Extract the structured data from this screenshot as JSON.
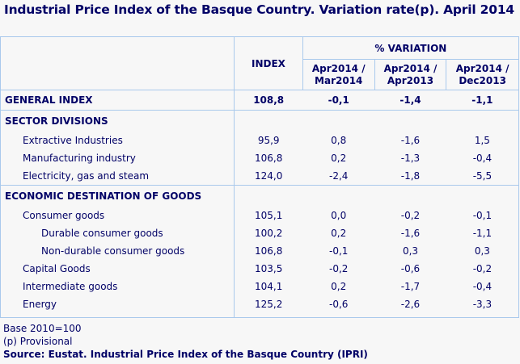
{
  "title": "Industrial Price Index of the Basque Country. Variation rate(p). April 2014",
  "header": {
    "index": "INDEX",
    "variation": "% VARIATION",
    "cols": [
      "Apr2014 / Mar2014",
      "Apr2014 / Apr2013",
      "Apr2014 /Dec2013"
    ]
  },
  "general": {
    "label": "GENERAL INDEX",
    "values": [
      "108,8",
      "-0,1",
      "-1,4",
      "-1,1"
    ]
  },
  "sections": [
    {
      "label": "SECTOR DIVISIONS",
      "rows": [
        {
          "label": "Extractive Industries",
          "level": 1,
          "values": [
            "95,9",
            "0,8",
            "-1,6",
            "1,5"
          ]
        },
        {
          "label": "Manufacturing industry",
          "level": 1,
          "values": [
            "106,8",
            "0,2",
            "-1,3",
            "-0,4"
          ]
        },
        {
          "label": "Electricity, gas and steam",
          "level": 1,
          "values": [
            "124,0",
            "-2,4",
            "-1,8",
            "-5,5"
          ]
        }
      ]
    },
    {
      "label": "ECONOMIC DESTINATION OF GOODS",
      "rows": [
        {
          "label": "Consumer goods",
          "level": 1,
          "values": [
            "105,1",
            "0,0",
            "-0,2",
            "-0,1"
          ]
        },
        {
          "label": "Durable consumer goods",
          "level": 2,
          "values": [
            "100,2",
            "0,2",
            "-1,6",
            "-1,1"
          ]
        },
        {
          "label": "Non-durable consumer goods",
          "level": 2,
          "values": [
            "106,8",
            "-0,1",
            "0,3",
            "0,3"
          ]
        },
        {
          "label": "Capital Goods",
          "level": 1,
          "values": [
            "103,5",
            "-0,2",
            "-0,6",
            "-0,2"
          ]
        },
        {
          "label": "Intermediate goods",
          "level": 1,
          "values": [
            "104,1",
            "0,2",
            "-1,7",
            "-0,4"
          ]
        },
        {
          "label": "Energy",
          "level": 1,
          "values": [
            "125,2",
            "-0,6",
            "-2,6",
            "-3,3"
          ]
        }
      ]
    }
  ],
  "notes": {
    "base": "Base 2010=100",
    "provisional": "(p) Provisional",
    "source": "Source: Eustat. Industrial Price Index of the Basque Country (IPRI)"
  },
  "colors": {
    "text": "#000066",
    "border": "#a9c9ec",
    "background": "#f7f7f7"
  }
}
